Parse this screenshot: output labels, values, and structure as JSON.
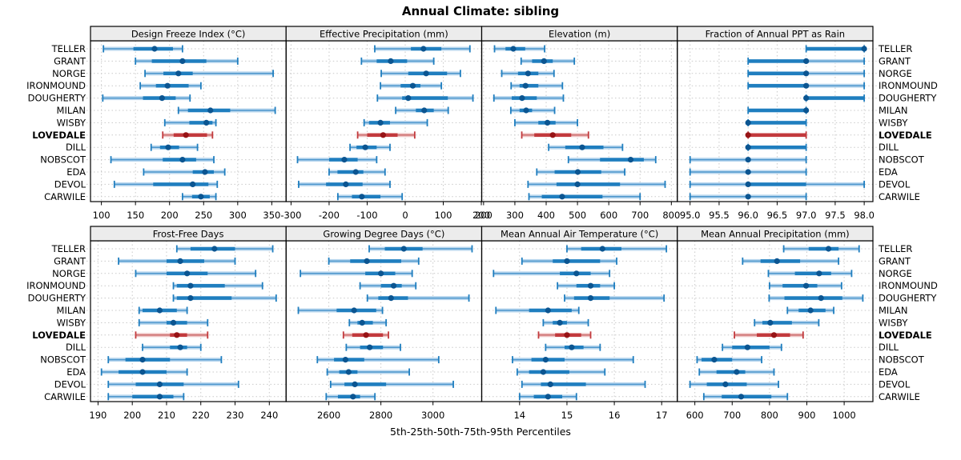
{
  "title": "Annual Climate: sibling",
  "caption": "5th-25th-50th-75th-95th Percentiles",
  "sites": [
    "TELLER",
    "GRANT",
    "NORGE",
    "IRONMOUND",
    "DOUGHERTY",
    "MILAN",
    "WISBY",
    "LOVEDALE",
    "DILL",
    "NOBSCOT",
    "EDA",
    "DEVOL",
    "CARWILE"
  ],
  "highlight_site": "LOVEDALE",
  "colors": {
    "blue_band": "#b9d7ee",
    "blue_line": "#4c96cc",
    "blue_bar": "#1f7ebf",
    "blue_dot": "#0b5591",
    "red_band": "#eec3c3",
    "red_line": "#cc6a6a",
    "red_bar": "#c23a3d",
    "red_dot": "#971416",
    "grid": "#c9c9c9",
    "strip_bg": "#ececec",
    "border": "#000000"
  },
  "chart_data": {
    "type": "dotplot",
    "percentiles": [
      "5th",
      "25th",
      "50th",
      "75th",
      "95th"
    ],
    "legend_note": "each row shows 5th-25th-50th-75th-95th percentile whisker/bar/dot",
    "panels": [
      {
        "title": "Design Freeze Index (°C)",
        "row": 0,
        "col": 0,
        "xlim": [
          84,
          371
        ],
        "ticks": [
          100,
          150,
          200,
          250,
          300,
          350
        ],
        "decimals": 0,
        "values": [
          [
            103,
            147,
            178,
            205,
            219
          ],
          [
            150,
            174,
            219,
            254,
            300
          ],
          [
            164,
            191,
            213,
            234,
            352
          ],
          [
            157,
            180,
            197,
            228,
            246
          ],
          [
            102,
            161,
            189,
            209,
            230
          ],
          [
            213,
            227,
            260,
            289,
            355
          ],
          [
            193,
            229,
            254,
            263,
            268
          ],
          [
            190,
            206,
            224,
            255,
            263
          ],
          [
            173,
            186,
            198,
            214,
            241
          ],
          [
            114,
            190,
            219,
            239,
            265
          ],
          [
            162,
            234,
            252,
            265,
            281
          ],
          [
            119,
            176,
            234,
            257,
            270
          ],
          [
            219,
            233,
            246,
            259,
            268
          ]
        ]
      },
      {
        "title": "Effective Precipitation (mm)",
        "row": 0,
        "col": 1,
        "xlim": [
          -313,
          201
        ],
        "ticks": [
          -300,
          -200,
          -100,
          0,
          100,
          200
        ],
        "decimals": 0,
        "values": [
          [
            -80,
            15,
            48,
            95,
            170
          ],
          [
            -115,
            -75,
            -38,
            5,
            75
          ],
          [
            -63,
            8,
            55,
            110,
            145
          ],
          [
            -65,
            -12,
            20,
            40,
            95
          ],
          [
            -73,
            -8,
            8,
            112,
            178
          ],
          [
            -25,
            28,
            50,
            75,
            113
          ],
          [
            -108,
            -95,
            -65,
            -40,
            58
          ],
          [
            -125,
            -100,
            -58,
            -20,
            25
          ],
          [
            -145,
            -128,
            -105,
            -75,
            -40
          ],
          [
            -283,
            -200,
            -160,
            -125,
            -75
          ],
          [
            -200,
            -178,
            -130,
            -110,
            -53
          ],
          [
            -280,
            -208,
            -156,
            -112,
            -40
          ],
          [
            -177,
            -140,
            -114,
            -65,
            -8
          ]
        ]
      },
      {
        "title": "Elevation (m)",
        "row": 0,
        "col": 2,
        "xlim": [
          194,
          819
        ],
        "ticks": [
          200,
          300,
          400,
          500,
          600,
          700,
          800
        ],
        "decimals": 0,
        "values": [
          [
            235,
            270,
            295,
            333,
            395
          ],
          [
            320,
            355,
            393,
            421,
            490
          ],
          [
            258,
            310,
            342,
            375,
            425
          ],
          [
            288,
            315,
            334,
            375,
            452
          ],
          [
            233,
            290,
            323,
            370,
            455
          ],
          [
            287,
            315,
            336,
            355,
            427
          ],
          [
            300,
            375,
            404,
            430,
            500
          ],
          [
            322,
            362,
            421,
            480,
            535
          ],
          [
            408,
            461,
            515,
            583,
            644
          ],
          [
            471,
            572,
            670,
            712,
            750
          ],
          [
            370,
            427,
            501,
            576,
            651
          ],
          [
            342,
            433,
            500,
            636,
            780
          ],
          [
            345,
            386,
            451,
            580,
            700
          ]
        ]
      },
      {
        "title": "Fraction of Annual PPT as Rain",
        "row": 0,
        "col": 3,
        "xlim": [
          94.78,
          98.15
        ],
        "ticks": [
          95,
          95.5,
          96,
          96.5,
          97,
          97.5,
          98
        ],
        "decimals": 1,
        "values": [
          [
            97,
            97,
            98,
            98,
            98
          ],
          [
            96,
            96,
            97,
            97,
            98
          ],
          [
            96,
            96,
            97,
            97,
            98
          ],
          [
            96,
            96,
            97,
            97,
            98
          ],
          [
            97,
            97,
            97,
            98,
            98
          ],
          [
            96,
            96,
            97,
            97,
            97
          ],
          [
            96,
            96,
            96,
            97,
            97
          ],
          [
            96,
            96,
            96,
            97,
            97
          ],
          [
            96,
            96,
            96,
            97,
            97
          ],
          [
            95,
            96,
            96,
            96,
            97
          ],
          [
            95,
            96,
            96,
            96,
            97
          ],
          [
            95,
            96,
            96,
            97,
            98
          ],
          [
            95,
            96,
            96,
            96,
            97
          ]
        ]
      },
      {
        "title": "Frost-Free Days",
        "row": 1,
        "col": 0,
        "xlim": [
          187.8,
          244.9
        ],
        "ticks": [
          190,
          200,
          210,
          220,
          230,
          240
        ],
        "decimals": 0,
        "values": [
          [
            213,
            217,
            224,
            230,
            241
          ],
          [
            196,
            210,
            214,
            221,
            230
          ],
          [
            201,
            210,
            216,
            222,
            236
          ],
          [
            212,
            213,
            217,
            227,
            238
          ],
          [
            212,
            213,
            217,
            229,
            242
          ],
          [
            202,
            203,
            208,
            213,
            216
          ],
          [
            202,
            210,
            212,
            216,
            222
          ],
          [
            201,
            211,
            213,
            216,
            222
          ],
          [
            203,
            211,
            214,
            216,
            220
          ],
          [
            193,
            198,
            203,
            211,
            226
          ],
          [
            191,
            196,
            203,
            210,
            216
          ],
          [
            193,
            201,
            208,
            215,
            231
          ],
          [
            193,
            200,
            208,
            212,
            215
          ]
        ]
      },
      {
        "title": "Growing Degree Days (°C)",
        "row": 1,
        "col": 1,
        "xlim": [
          2436,
          3187
        ],
        "ticks": [
          2600,
          2800,
          3000
        ],
        "decimals": 0,
        "values": [
          [
            2755,
            2815,
            2888,
            2960,
            3150
          ],
          [
            2600,
            2682,
            2746,
            2878,
            2945
          ],
          [
            2491,
            2740,
            2800,
            2855,
            2920
          ],
          [
            2720,
            2800,
            2849,
            2880,
            2934
          ],
          [
            2748,
            2790,
            2839,
            2904,
            3138
          ],
          [
            2483,
            2630,
            2697,
            2782,
            2806
          ],
          [
            2679,
            2710,
            2728,
            2769,
            2820
          ],
          [
            2656,
            2690,
            2743,
            2808,
            2829
          ],
          [
            2667,
            2720,
            2757,
            2808,
            2875
          ],
          [
            2556,
            2620,
            2664,
            2736,
            3022
          ],
          [
            2594,
            2640,
            2676,
            2710,
            2909
          ],
          [
            2607,
            2660,
            2700,
            2820,
            3078
          ],
          [
            2590,
            2635,
            2693,
            2720,
            2777
          ]
        ]
      },
      {
        "title": "Mean Annual Air Temperature (°C)",
        "row": 1,
        "col": 2,
        "xlim": [
          13.2,
          17.33
        ],
        "ticks": [
          14,
          15,
          16,
          17
        ],
        "decimals": 0,
        "values": [
          [
            15.0,
            15.3,
            15.75,
            16.15,
            17.1
          ],
          [
            14.05,
            14.7,
            15.0,
            15.7,
            16.05
          ],
          [
            13.45,
            14.85,
            15.2,
            15.5,
            15.9
          ],
          [
            14.8,
            15.2,
            15.5,
            15.7,
            16.0
          ],
          [
            14.95,
            15.15,
            15.5,
            15.9,
            17.05
          ],
          [
            13.5,
            14.2,
            14.6,
            15.1,
            15.25
          ],
          [
            14.5,
            14.7,
            14.85,
            15.0,
            15.45
          ],
          [
            14.4,
            14.75,
            15.0,
            15.3,
            15.5
          ],
          [
            14.55,
            14.95,
            15.1,
            15.35,
            15.7
          ],
          [
            13.85,
            14.25,
            14.55,
            14.95,
            16.4
          ],
          [
            13.95,
            14.2,
            14.5,
            15.05,
            15.8
          ],
          [
            14.05,
            14.45,
            14.65,
            15.4,
            16.65
          ],
          [
            14.0,
            14.3,
            14.6,
            14.9,
            15.2
          ]
        ]
      },
      {
        "title": "Mean Annual Precipitation (mm)",
        "row": 1,
        "col": 3,
        "xlim": [
          553,
          1077
        ],
        "ticks": [
          600,
          700,
          800,
          900,
          1000
        ],
        "decimals": 0,
        "values": [
          [
            838,
            905,
            958,
            985,
            1040
          ],
          [
            728,
            776,
            820,
            882,
            985
          ],
          [
            797,
            868,
            933,
            965,
            1020
          ],
          [
            800,
            835,
            898,
            928,
            993
          ],
          [
            799,
            840,
            938,
            995,
            1050
          ],
          [
            848,
            878,
            910,
            950,
            972
          ],
          [
            760,
            781,
            802,
            860,
            932
          ],
          [
            706,
            766,
            812,
            855,
            890
          ],
          [
            674,
            700,
            741,
            800,
            832
          ],
          [
            606,
            618,
            652,
            700,
            779
          ],
          [
            612,
            658,
            712,
            735,
            812
          ],
          [
            587,
            632,
            682,
            739,
            824
          ],
          [
            624,
            672,
            724,
            805,
            848
          ]
        ]
      }
    ]
  }
}
